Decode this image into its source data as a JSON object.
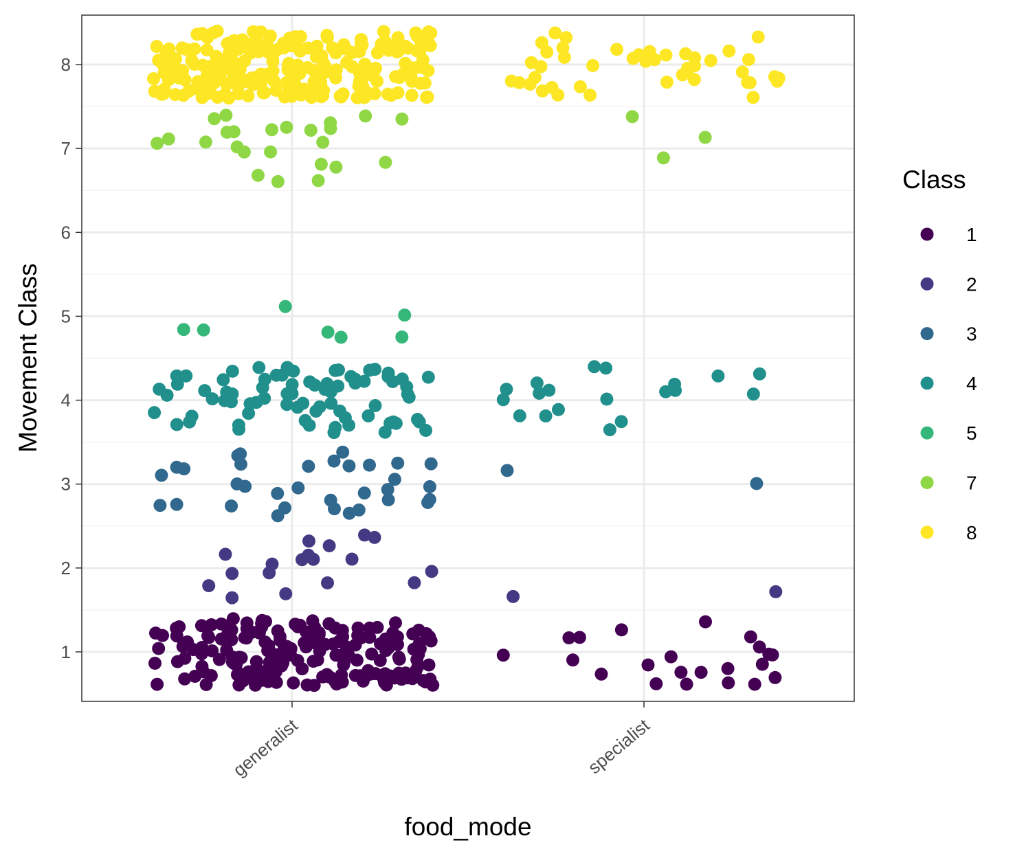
{
  "chart_data": {
    "type": "scatter",
    "title": "",
    "xlabel": "food_mode",
    "ylabel": "Movement Class",
    "categories": [
      "generalist",
      "specialist"
    ],
    "y_ticks": [
      1,
      2,
      3,
      4,
      5,
      6,
      7,
      8
    ],
    "y_tick_labels": [
      "1",
      "2",
      "3",
      "4",
      "5",
      "6",
      "7",
      "8"
    ],
    "ylim": [
      0.41,
      8.59
    ],
    "jitter": "horizontal and vertical jitter (about ±0.4) around each category / class value",
    "grid": true,
    "legend": {
      "title": "Class",
      "position": "right",
      "entries": [
        {
          "label": "1",
          "color": "#440154"
        },
        {
          "label": "2",
          "color": "#443A83"
        },
        {
          "label": "3",
          "color": "#31688E"
        },
        {
          "label": "4",
          "color": "#21908C"
        },
        {
          "label": "5",
          "color": "#35B779"
        },
        {
          "label": "7",
          "color": "#8FD744"
        },
        {
          "label": "8",
          "color": "#FDE725"
        }
      ]
    },
    "series": [
      {
        "name": "1",
        "counts": {
          "generalist": 190,
          "specialist": 22
        }
      },
      {
        "name": "2",
        "counts": {
          "generalist": 18,
          "specialist": 2
        }
      },
      {
        "name": "3",
        "counts": {
          "generalist": 33,
          "specialist": 2
        }
      },
      {
        "name": "4",
        "counts": {
          "generalist": 78,
          "specialist": 19
        }
      },
      {
        "name": "5",
        "counts": {
          "generalist": 7,
          "specialist": 0
        }
      },
      {
        "name": "7",
        "counts": {
          "generalist": 24,
          "specialist": 3
        }
      },
      {
        "name": "8",
        "counts": {
          "generalist": 230,
          "specialist": 44
        }
      }
    ]
  }
}
